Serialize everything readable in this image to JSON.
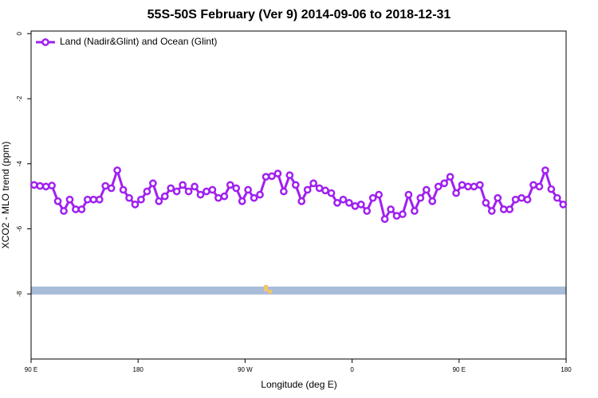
{
  "chart_data": {
    "type": "line",
    "title": "55S-50S February (Ver 9)   2014-09-06 to 2018-12-31",
    "xlabel": "Longitude (deg E)",
    "ylabel": "XCO2 - MLO trend (ppm)",
    "x": [
      92.5,
      97.5,
      102.5,
      107.5,
      112.5,
      117.5,
      122.5,
      127.5,
      132.5,
      137.5,
      142.5,
      147.5,
      152.5,
      157.5,
      162.5,
      167.5,
      172.5,
      177.5,
      182.5,
      187.5,
      192.5,
      197.5,
      202.5,
      207.5,
      212.5,
      217.5,
      222.5,
      227.5,
      232.5,
      237.5,
      242.5,
      247.5,
      252.5,
      257.5,
      262.5,
      267.5,
      272.5,
      277.5,
      282.5,
      287.5,
      292.5,
      297.5,
      302.5,
      307.5,
      312.5,
      317.5,
      322.5,
      327.5,
      332.5,
      337.5,
      342.5,
      347.5,
      352.5,
      357.5,
      362.5,
      367.5,
      372.5,
      377.5,
      382.5,
      387.5,
      392.5,
      397.5,
      402.5,
      407.5,
      412.5,
      417.5,
      422.5,
      427.5,
      432.5,
      437.5,
      442.5,
      447.5,
      452.5,
      457.5,
      462.5,
      467.5,
      472.5,
      477.5,
      482.5,
      487.5,
      492.5,
      497.5,
      502.5,
      507.5,
      512.5,
      517.5,
      522.5,
      527.5,
      532.5,
      537.5
    ],
    "series": [
      {
        "name": "Land (Nadir&Glint) and Ocean (Glint)",
        "color": "#a020f0",
        "values": [
          -4.65,
          -4.68,
          -4.7,
          -4.67,
          -5.15,
          -5.45,
          -5.1,
          -5.4,
          -5.4,
          -5.1,
          -5.1,
          -5.1,
          -4.68,
          -4.75,
          -4.2,
          -4.8,
          -5.05,
          -5.25,
          -5.1,
          -4.85,
          -4.6,
          -5.15,
          -5.0,
          -4.75,
          -4.85,
          -4.65,
          -4.85,
          -4.7,
          -4.95,
          -4.85,
          -4.8,
          -5.05,
          -5.0,
          -4.65,
          -4.75,
          -5.15,
          -4.8,
          -5.05,
          -4.95,
          -4.4,
          -4.38,
          -4.3,
          -4.85,
          -4.35,
          -4.65,
          -5.15,
          -4.8,
          -4.6,
          -4.75,
          -4.82,
          -4.9,
          -5.2,
          -5.1,
          -5.2,
          -5.3,
          -5.25,
          -5.45,
          -5.05,
          -4.95,
          -5.7,
          -5.4,
          -5.6,
          -5.55,
          -4.95,
          -5.45,
          -5.05,
          -4.8,
          -5.15,
          -4.7,
          -4.6,
          -4.4,
          -4.9,
          -4.65,
          -4.7,
          -4.7,
          -4.65,
          -5.2,
          -5.45,
          -5.05,
          -5.4,
          -5.4,
          -5.1,
          -5.05,
          -5.1,
          -4.65,
          -4.7,
          -4.2,
          -4.78,
          -5.05,
          -5.25
        ]
      }
    ],
    "xlim": [
      90,
      540
    ],
    "xticks": [
      {
        "value": 90,
        "label": "90 E"
      },
      180,
      {
        "value": 270,
        "label": "90 W"
      },
      {
        "value": 360,
        "label": "0"
      },
      {
        "value": 450,
        "label": "90 E"
      },
      {
        "value": 540,
        "label": "180"
      }
    ],
    "ylim": [
      -10,
      0.08
    ],
    "yticks": [
      -8,
      -6,
      -4,
      -2,
      0
    ],
    "legend": "top-left"
  }
}
